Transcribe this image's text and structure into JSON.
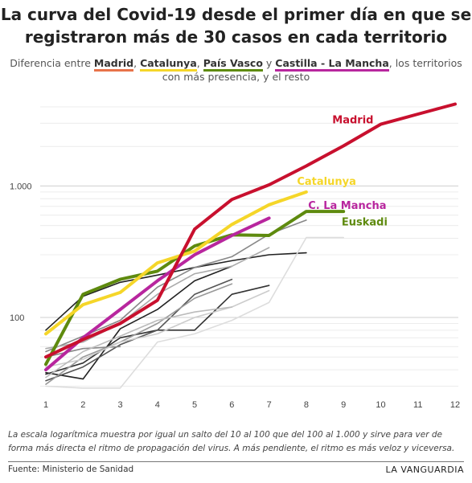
{
  "title_line1": "La curva del Covid-19 desde el primer día en que se",
  "title_line2": "registraron más de 30 casos en cada territorio",
  "subtitle": {
    "prefix": "Diferencia entre ",
    "madrid": "Madrid",
    "sep1": ", ",
    "catalunya": "Catalunya",
    "sep2": ", ",
    "pais_vasco": "País Vasco",
    "sep3": " y ",
    "castilla": "Castilla - La Mancha",
    "suffix": ", los territorios",
    "line2": "con más presencia, y el resto"
  },
  "note": "La escala logarítmica muestra por igual un salto del 10 al 100 que del 100 al 1.000 y sirve para ver de forma más directa el ritmo de propagación del virus. A más pendiente, el ritmo es más veloz y viceversa.",
  "source": "Fuente: Ministerio de Sanidad",
  "brand": "LA VANGUARDIA",
  "chart_data": {
    "type": "line",
    "yscale": "log",
    "ylim": [
      27,
      4800
    ],
    "xlim": [
      1,
      12
    ],
    "x_ticks": [
      1,
      2,
      3,
      4,
      5,
      6,
      7,
      8,
      9,
      10,
      11,
      12
    ],
    "y_ticks": [
      {
        "value": 100,
        "label": "100"
      },
      {
        "value": 1000,
        "label": "1.000"
      }
    ],
    "highlight_series": [
      {
        "name": "Madrid",
        "color": "#c8102e",
        "label_x": 8.7,
        "label_y": 3000,
        "x": [
          1,
          2,
          3,
          4,
          5,
          6,
          7,
          8,
          9,
          10,
          11,
          12
        ],
        "values": [
          50,
          68,
          90,
          135,
          470,
          790,
          1020,
          1420,
          2020,
          2950,
          3520,
          4200
        ]
      },
      {
        "name": "Catalunya",
        "color": "#f5d629",
        "label_x": 7.75,
        "label_y": 1020,
        "x": [
          1,
          2,
          3,
          4,
          5,
          6,
          7,
          8
        ],
        "values": [
          75,
          125,
          155,
          260,
          320,
          510,
          720,
          900
        ]
      },
      {
        "name": "C. La Mancha",
        "color": "#b8269e",
        "label_x": 8.05,
        "label_y": 670,
        "x": [
          1,
          2,
          3,
          4,
          5,
          6,
          7
        ],
        "values": [
          40,
          70,
          115,
          190,
          300,
          420,
          570
        ]
      },
      {
        "name": "Euskadi",
        "color": "#5e8a0e",
        "label_x": 8.95,
        "label_y": 500,
        "x": [
          1,
          2,
          3,
          4,
          5,
          6,
          7,
          8,
          9
        ],
        "values": [
          44,
          150,
          195,
          225,
          350,
          425,
          420,
          640,
          640
        ]
      }
    ],
    "other_series": [
      {
        "color": "#222222",
        "x": [
          1,
          2,
          3,
          4,
          5,
          6,
          7,
          8
        ],
        "values": [
          80,
          145,
          185,
          210,
          240,
          270,
          300,
          310
        ]
      },
      {
        "color": "#222222",
        "x": [
          1,
          2,
          3,
          4,
          5,
          6
        ],
        "values": [
          38,
          34,
          82,
          115,
          190,
          245
        ]
      },
      {
        "color": "#333333",
        "x": [
          1,
          2,
          3,
          4,
          5,
          6,
          7
        ],
        "values": [
          37,
          45,
          70,
          80,
          80,
          150,
          175
        ]
      },
      {
        "color": "#555555",
        "x": [
          1,
          2,
          3,
          4,
          5,
          6
        ],
        "values": [
          33,
          42,
          62,
          80,
          150,
          195
        ]
      },
      {
        "color": "#888888",
        "x": [
          1,
          2,
          3,
          4,
          5,
          6,
          7,
          8
        ],
        "values": [
          55,
          72,
          95,
          170,
          240,
          290,
          430,
          550
        ]
      },
      {
        "color": "#999999",
        "x": [
          1,
          2,
          3,
          4,
          5,
          6
        ],
        "values": [
          31,
          50,
          65,
          90,
          140,
          180
        ]
      },
      {
        "color": "#888888",
        "x": [
          1,
          2,
          3
        ],
        "values": [
          50,
          58,
          60
        ]
      },
      {
        "color": "#aaaaaa",
        "x": [
          1,
          2,
          3,
          4,
          5,
          6,
          7
        ],
        "values": [
          58,
          65,
          90,
          150,
          215,
          245,
          340
        ]
      },
      {
        "color": "#cccccc",
        "x": [
          1,
          2,
          3,
          4,
          5,
          6,
          7
        ],
        "values": [
          42,
          48,
          65,
          75,
          100,
          120,
          160
        ]
      },
      {
        "color": "#bbbbbb",
        "x": [
          1,
          2,
          3,
          4,
          5,
          6
        ],
        "values": [
          35,
          55,
          72,
          95,
          110,
          120
        ]
      },
      {
        "color": "#dddddd",
        "x": [
          1,
          2,
          3,
          4,
          5,
          6,
          7,
          8,
          9
        ],
        "values": [
          30,
          29,
          29,
          65,
          75,
          95,
          130,
          405,
          405
        ]
      }
    ]
  }
}
